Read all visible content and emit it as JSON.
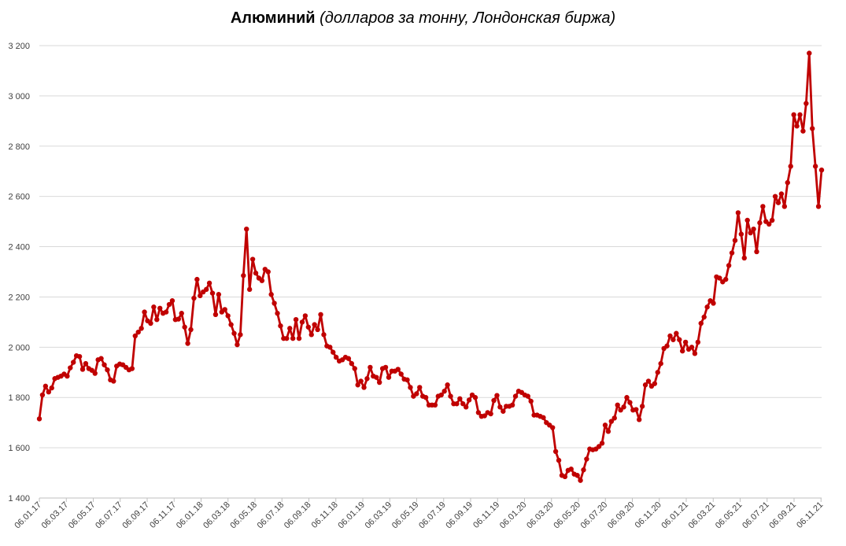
{
  "chart_data": {
    "type": "line",
    "title": "Алюминий",
    "subtitle": "(долларов за тонну, Лондонская биржа)",
    "ylim": [
      1400,
      3200
    ],
    "ytick_values": [
      1400,
      1600,
      1800,
      2000,
      2200,
      2400,
      2600,
      2800,
      3000,
      3200
    ],
    "ytick_labels": [
      "1 400",
      "1 600",
      "1 800",
      "2 000",
      "2 200",
      "2 400",
      "2 600",
      "2 800",
      "3 000",
      "3 200"
    ],
    "xtick_labels": [
      "06.01.17",
      "06.03.17",
      "06.05.17",
      "06.07.17",
      "06.09.17",
      "06.11.17",
      "06.01.18",
      "06.03.18",
      "06.05.18",
      "06.07.18",
      "06.09.18",
      "06.11.18",
      "06.01.19",
      "06.03.19",
      "06.05.19",
      "06.07.19",
      "06.09.19",
      "06.11.19",
      "06.01.20",
      "06.03.20",
      "06.05.20",
      "06.07.20",
      "06.09.20",
      "06.11.20",
      "06.01.21",
      "06.03.21",
      "06.05.21",
      "06.07.21",
      "06.09.21",
      "06.11.21"
    ],
    "grid": "horizontal",
    "series_color": "#c00000",
    "series": [
      {
        "values": [
          1715,
          1810,
          1845,
          1822,
          1838,
          1875,
          1880,
          1885,
          1893,
          1885,
          1918,
          1940,
          1966,
          1963,
          1912,
          1935,
          1915,
          1908,
          1896,
          1950,
          1955,
          1930,
          1910,
          1870,
          1865,
          1925,
          1933,
          1930,
          1920,
          1910,
          1915,
          2045,
          2060,
          2075,
          2140,
          2105,
          2095,
          2160,
          2110,
          2155,
          2135,
          2140,
          2170,
          2185,
          2110,
          2112,
          2135,
          2080,
          2015,
          2070,
          2195,
          2270,
          2205,
          2220,
          2230,
          2255,
          2215,
          2130,
          2210,
          2140,
          2150,
          2125,
          2090,
          2055,
          2010,
          2050,
          2285,
          2470,
          2230,
          2350,
          2295,
          2275,
          2265,
          2310,
          2300,
          2210,
          2175,
          2135,
          2085,
          2035,
          2035,
          2075,
          2035,
          2110,
          2035,
          2100,
          2125,
          2080,
          2050,
          2090,
          2070,
          2130,
          2050,
          2005,
          2000,
          1980,
          1960,
          1945,
          1950,
          1960,
          1955,
          1935,
          1915,
          1850,
          1865,
          1840,
          1875,
          1920,
          1885,
          1880,
          1860,
          1915,
          1920,
          1880,
          1905,
          1905,
          1912,
          1893,
          1873,
          1870,
          1840,
          1805,
          1815,
          1840,
          1805,
          1800,
          1770,
          1770,
          1770,
          1805,
          1810,
          1825,
          1850,
          1805,
          1775,
          1775,
          1795,
          1775,
          1762,
          1790,
          1810,
          1800,
          1740,
          1725,
          1727,
          1740,
          1735,
          1788,
          1808,
          1762,
          1745,
          1765,
          1765,
          1770,
          1805,
          1825,
          1820,
          1810,
          1805,
          1785,
          1730,
          1730,
          1725,
          1720,
          1700,
          1690,
          1680,
          1585,
          1550,
          1490,
          1485,
          1510,
          1515,
          1495,
          1490,
          1470,
          1512,
          1555,
          1595,
          1592,
          1595,
          1605,
          1618,
          1690,
          1665,
          1705,
          1718,
          1770,
          1750,
          1762,
          1800,
          1780,
          1750,
          1752,
          1712,
          1765,
          1850,
          1865,
          1845,
          1855,
          1900,
          1935,
          1995,
          2005,
          2045,
          2030,
          2055,
          2030,
          1985,
          2020,
          1992,
          2000,
          1975,
          2020,
          2095,
          2120,
          2160,
          2185,
          2175,
          2280,
          2275,
          2260,
          2270,
          2325,
          2375,
          2425,
          2535,
          2450,
          2355,
          2505,
          2455,
          2470,
          2380,
          2495,
          2560,
          2500,
          2490,
          2505,
          2600,
          2575,
          2610,
          2560,
          2655,
          2720,
          2925,
          2880,
          2925,
          2860,
          2970,
          3170,
          2870,
          2720,
          2560,
          2705
        ]
      }
    ]
  }
}
